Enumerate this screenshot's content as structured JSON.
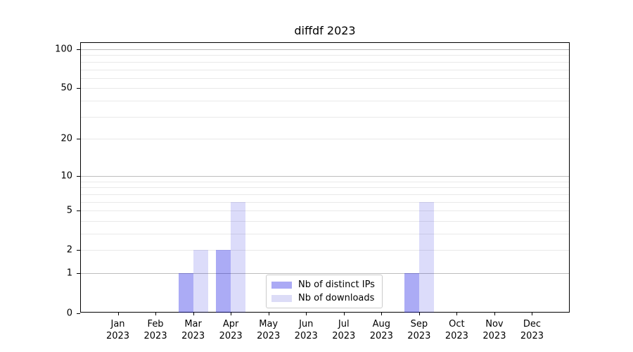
{
  "chart_data": {
    "type": "bar",
    "title": "diffdf 2023",
    "categories": [
      "Jan",
      "Feb",
      "Mar",
      "Apr",
      "May",
      "Jun",
      "Jul",
      "Aug",
      "Sep",
      "Oct",
      "Nov",
      "Dec"
    ],
    "category_year": "2023",
    "series": [
      {
        "name": "Nb of distinct IPs",
        "color": "rgba(0,0,225,0.33)",
        "swatch": "#abaaf5",
        "values": [
          0,
          0,
          1,
          2,
          0,
          0,
          0,
          0,
          1,
          0,
          0,
          0
        ]
      },
      {
        "name": "Nb of downloads",
        "color": "rgba(10,10,220,0.14)",
        "swatch": "#dcdcf7",
        "values": [
          0,
          0,
          2,
          6,
          0,
          0,
          0,
          0,
          6,
          0,
          0,
          0
        ]
      }
    ],
    "xlabel": "",
    "ylabel": "",
    "yscale": "log1p",
    "ylim": [
      0,
      113
    ],
    "yticks": [
      0,
      1,
      2,
      5,
      10,
      20,
      50,
      100
    ],
    "grid": {
      "on": true,
      "major_values": [
        1,
        10,
        100
      ],
      "minor_values": [
        2,
        3,
        4,
        5,
        6,
        7,
        8,
        9,
        20,
        30,
        40,
        50,
        60,
        70,
        80,
        90
      ],
      "major_color": "#bdbdbd",
      "minor_color": "#e9e9e9"
    },
    "legend_position": "lower-center",
    "axis_color": "#000000",
    "background_color": "#ffffff"
  }
}
